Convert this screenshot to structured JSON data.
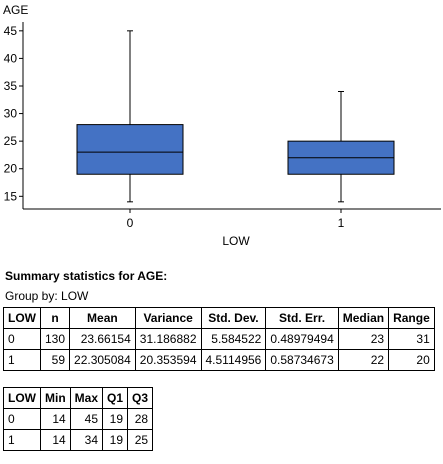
{
  "chart_data": {
    "type": "boxplot",
    "ylabel": "AGE",
    "xlabel": "LOW",
    "categories": [
      "0",
      "1"
    ],
    "yticks": [
      15,
      20,
      25,
      30,
      35,
      40,
      45
    ],
    "ylim": [
      12.7,
      46.6
    ],
    "box_color": "#4472c4",
    "boxes": [
      {
        "category": "0",
        "min": 14,
        "q1": 19,
        "median": 23,
        "q3": 28,
        "max": 45
      },
      {
        "category": "1",
        "min": 14,
        "q1": 19,
        "median": 22,
        "q3": 25,
        "max": 34
      }
    ]
  },
  "stats": {
    "title": "Summary statistics for AGE:",
    "group_by": "Group by: LOW",
    "table1": {
      "headers": [
        "LOW",
        "n",
        "Mean",
        "Variance",
        "Std. Dev.",
        "Std. Err.",
        "Median",
        "Range"
      ],
      "rows": [
        [
          "0",
          "130",
          "23.66154",
          "31.186882",
          "5.584522",
          "0.48979494",
          "23",
          "31"
        ],
        [
          "1",
          "59",
          "22.305084",
          "20.353594",
          "4.5114956",
          "0.58734673",
          "22",
          "20"
        ]
      ]
    },
    "table2": {
      "headers": [
        "LOW",
        "Min",
        "Max",
        "Q1",
        "Q3"
      ],
      "rows": [
        [
          "0",
          "14",
          "45",
          "19",
          "28"
        ],
        [
          "1",
          "14",
          "34",
          "19",
          "25"
        ]
      ]
    }
  }
}
